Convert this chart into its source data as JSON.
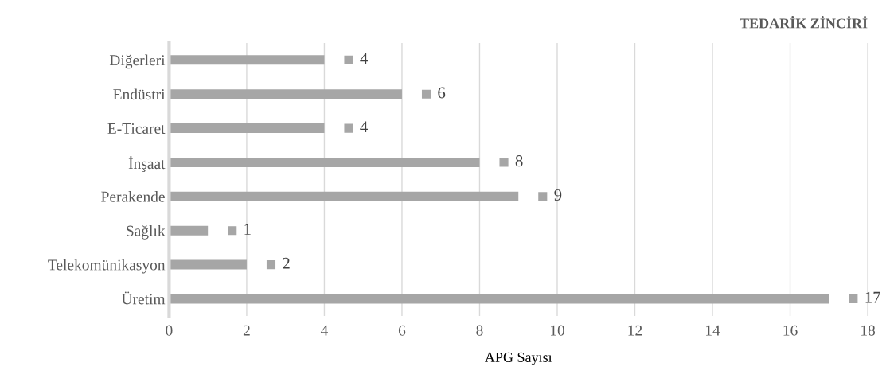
{
  "chart_data": {
    "type": "bar",
    "orientation": "horizontal",
    "title": "TEDARİK ZİNCİRİ",
    "xlabel": "APG Sayısı",
    "categories": [
      "Diğerleri",
      "Endüstri",
      "E-Ticaret",
      "İnşaat",
      "Perakende",
      "Sağlık",
      "Telekomünikasyon",
      "Üretim"
    ],
    "values": [
      4,
      6,
      4,
      8,
      9,
      1,
      2,
      17
    ],
    "color": "#a6a6a6",
    "xlim": [
      0,
      18
    ],
    "xticks": [
      0,
      2,
      4,
      6,
      8,
      10,
      12,
      14,
      16,
      18
    ],
    "grid": "x",
    "data_labels": true
  }
}
